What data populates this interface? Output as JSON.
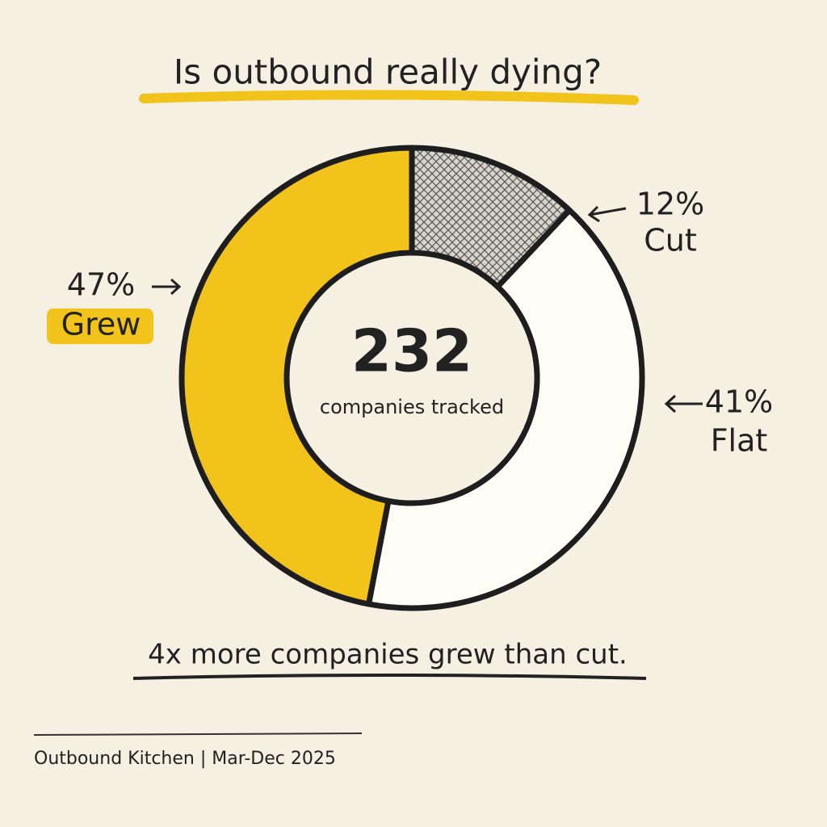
{
  "chart_data": {
    "type": "donut",
    "title": "Is outbound really dying?",
    "categories": [
      "Grew",
      "Flat",
      "Cut"
    ],
    "values": [
      47,
      41,
      12
    ],
    "value_labels": [
      "47%",
      "41%",
      "12%"
    ],
    "colors": [
      "#f2c31b",
      "#fffdf6",
      "#9a9a9a"
    ],
    "center_value": "232",
    "center_label": "companies tracked",
    "annotation": "4x more companies grew than cut.",
    "source": "Outbound Kitchen | Mar-Dec 2025"
  }
}
